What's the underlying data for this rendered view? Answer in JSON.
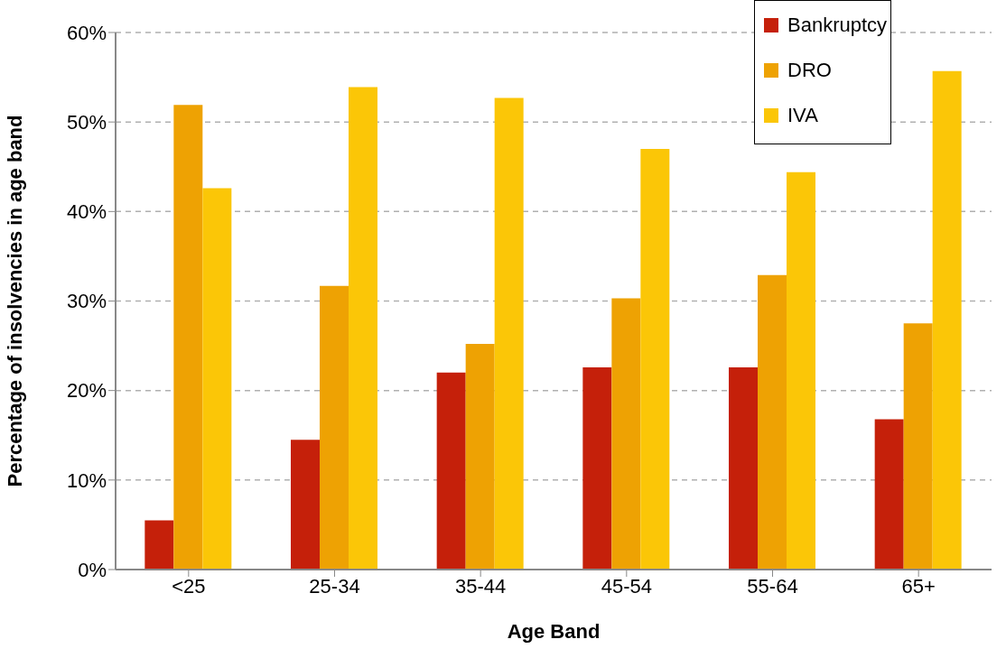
{
  "chart_data": {
    "type": "bar",
    "xlabel": "Age Band",
    "ylabel": "Percentage of insolvencies in age band",
    "categories": [
      "<25",
      "25-34",
      "35-44",
      "45-54",
      "55-64",
      "65+"
    ],
    "series": [
      {
        "name": "Bankruptcy",
        "color": "#c5200a",
        "values": [
          5.5,
          14.5,
          22.0,
          22.6,
          22.6,
          16.8
        ]
      },
      {
        "name": "DRO",
        "color": "#eea203",
        "values": [
          51.9,
          31.7,
          25.2,
          30.3,
          32.9,
          27.5
        ]
      },
      {
        "name": "IVA",
        "color": "#fbc607",
        "values": [
          42.6,
          53.9,
          52.7,
          47.0,
          44.4,
          55.7
        ]
      }
    ],
    "ylim": [
      0,
      60
    ],
    "yticks": [
      {
        "value": 0,
        "label": "0%"
      },
      {
        "value": 10,
        "label": "10%"
      },
      {
        "value": 20,
        "label": "20%"
      },
      {
        "value": 30,
        "label": "30%"
      },
      {
        "value": 40,
        "label": "40%"
      },
      {
        "value": 50,
        "label": "50%"
      },
      {
        "value": 60,
        "label": "60%"
      }
    ],
    "grid": "y",
    "legend": "top right"
  }
}
